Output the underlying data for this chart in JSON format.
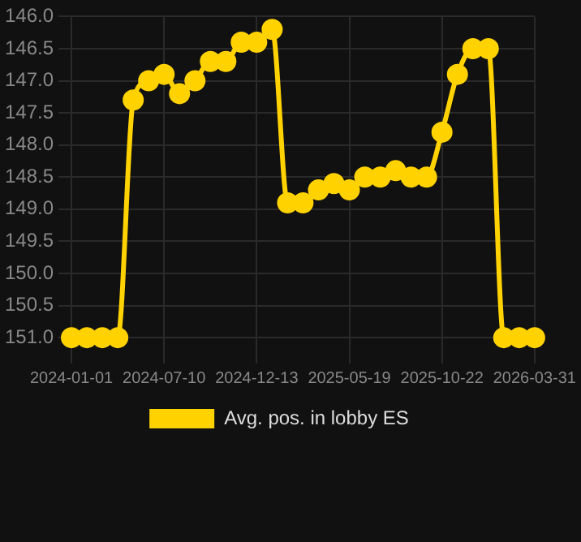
{
  "chart_data": {
    "type": "line",
    "categories": [
      "2024-01-01",
      null,
      null,
      null,
      null,
      null,
      "2024-07-10",
      null,
      null,
      null,
      null,
      null,
      "2024-12-13",
      null,
      null,
      null,
      null,
      null,
      "2025-05-19",
      null,
      null,
      null,
      null,
      null,
      "2025-10-22",
      null,
      null,
      null,
      null,
      null,
      "2026-03-31"
    ],
    "series": [
      {
        "name": "Avg. pos. in lobby ES",
        "color": "#ffd200",
        "values": [
          151.0,
          151.0,
          151.0,
          151.0,
          147.3,
          147.0,
          146.9,
          147.2,
          147.0,
          146.7,
          146.7,
          146.4,
          146.4,
          146.2,
          148.9,
          148.9,
          148.7,
          148.6,
          148.7,
          148.5,
          148.5,
          148.4,
          148.5,
          148.5,
          147.8,
          146.9,
          146.5,
          146.5,
          151.0,
          151.0,
          151.0
        ]
      }
    ],
    "ylim": [
      151.2,
      146.0
    ],
    "yticks": [
      {
        "value": 146,
        "label": "146.0"
      },
      {
        "value": 146.5,
        "label": "146.5"
      },
      {
        "value": 147,
        "label": "147.0"
      },
      {
        "value": 147.5,
        "label": "147.5"
      },
      {
        "value": 148,
        "label": "148.0"
      },
      {
        "value": 148.5,
        "label": "148.5"
      },
      {
        "value": 149,
        "label": "149.0"
      },
      {
        "value": 149.5,
        "label": "149.5"
      },
      {
        "value": 150,
        "label": "150.0"
      },
      {
        "value": 150.5,
        "label": "150.5"
      },
      {
        "value": 151,
        "label": "151.0"
      }
    ],
    "grid": true,
    "legend": "bottom",
    "marker": "circle",
    "line_style": "solid"
  }
}
